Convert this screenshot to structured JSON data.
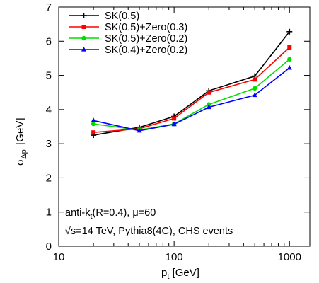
{
  "chart_data": {
    "type": "line",
    "x_scale": "log",
    "xlim": [
      10,
      1500
    ],
    "ylim": [
      0,
      7
    ],
    "x_ticks": [
      10,
      100,
      1000
    ],
    "x_tick_labels": [
      "10",
      "100",
      "1000"
    ],
    "y_ticks": [
      0,
      1,
      2,
      3,
      4,
      5,
      6,
      7
    ],
    "y_tick_labels": [
      "0",
      "1",
      "2",
      "3",
      "4",
      "5",
      "6",
      "7"
    ],
    "xlabel": "p",
    "xlabel_sub": "t",
    "xlabel_unit": " [GeV]",
    "ylabel": "σ",
    "ylabel_sub": "Δp",
    "ylabel_subsub": "t",
    "ylabel_unit": " [GeV]",
    "grid": false,
    "legend_position": "top-left",
    "x": [
      20,
      50,
      100,
      200,
      500,
      1000
    ],
    "series": [
      {
        "name": "SK(0.5)",
        "color": "#000000",
        "marker": "plus",
        "values": [
          3.25,
          3.48,
          3.8,
          4.55,
          4.98,
          6.28
        ]
      },
      {
        "name": "SK(0.5)+Zero(0.3)",
        "color": "#ff0000",
        "marker": "square",
        "values": [
          3.33,
          3.44,
          3.74,
          4.5,
          4.88,
          5.82
        ]
      },
      {
        "name": "SK(0.5)+Zero(0.2)",
        "color": "#00dd00",
        "marker": "circle",
        "values": [
          3.58,
          3.4,
          3.58,
          4.15,
          4.62,
          5.47
        ]
      },
      {
        "name": "SK(0.4)+Zero(0.2)",
        "color": "#0000ff",
        "marker": "triangle",
        "values": [
          3.68,
          3.38,
          3.57,
          4.07,
          4.42,
          5.22
        ]
      }
    ],
    "annotations": [
      {
        "id": "algo",
        "prefix": "anti-k",
        "sub": "t",
        "suffix": "(R=0.4), μ=60"
      },
      {
        "id": "sample",
        "text": "√s=14 TeV, Pythia8(4C), CHS events"
      }
    ]
  }
}
